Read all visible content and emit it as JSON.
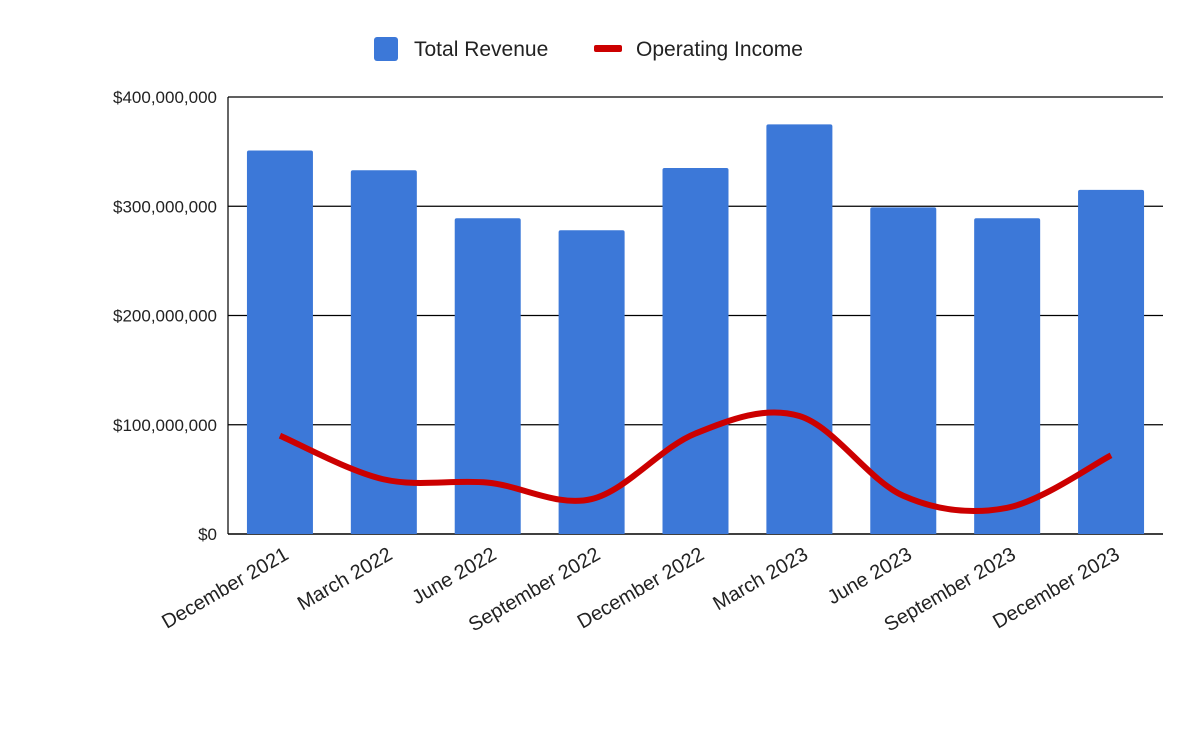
{
  "chart_data": {
    "type": "bar",
    "categories": [
      "December 2021",
      "March 2022",
      "June 2022",
      "September 2022",
      "December 2022",
      "March 2023",
      "June 2023",
      "September 2023",
      "December 2023"
    ],
    "series": [
      {
        "name": "Total Revenue",
        "type": "bar",
        "color": "#3c78d8",
        "values": [
          351000000,
          333000000,
          289000000,
          278000000,
          335000000,
          375000000,
          299000000,
          289000000,
          315000000
        ]
      },
      {
        "name": "Operating Income",
        "type": "line",
        "smooth": true,
        "color": "#cc0000",
        "values": [
          90000000,
          50000000,
          47000000,
          32000000,
          92000000,
          108000000,
          35000000,
          24000000,
          72000000
        ]
      }
    ],
    "ylim": [
      0,
      400000000
    ],
    "yticks": [
      0,
      100000000,
      200000000,
      300000000,
      400000000
    ],
    "ytick_labels": [
      "$0",
      "$100,000,000",
      "$200,000,000",
      "$300,000,000",
      "$400,000,000"
    ],
    "grid": true,
    "legend_position": "top-center",
    "title": "",
    "xlabel": "",
    "ylabel": ""
  }
}
